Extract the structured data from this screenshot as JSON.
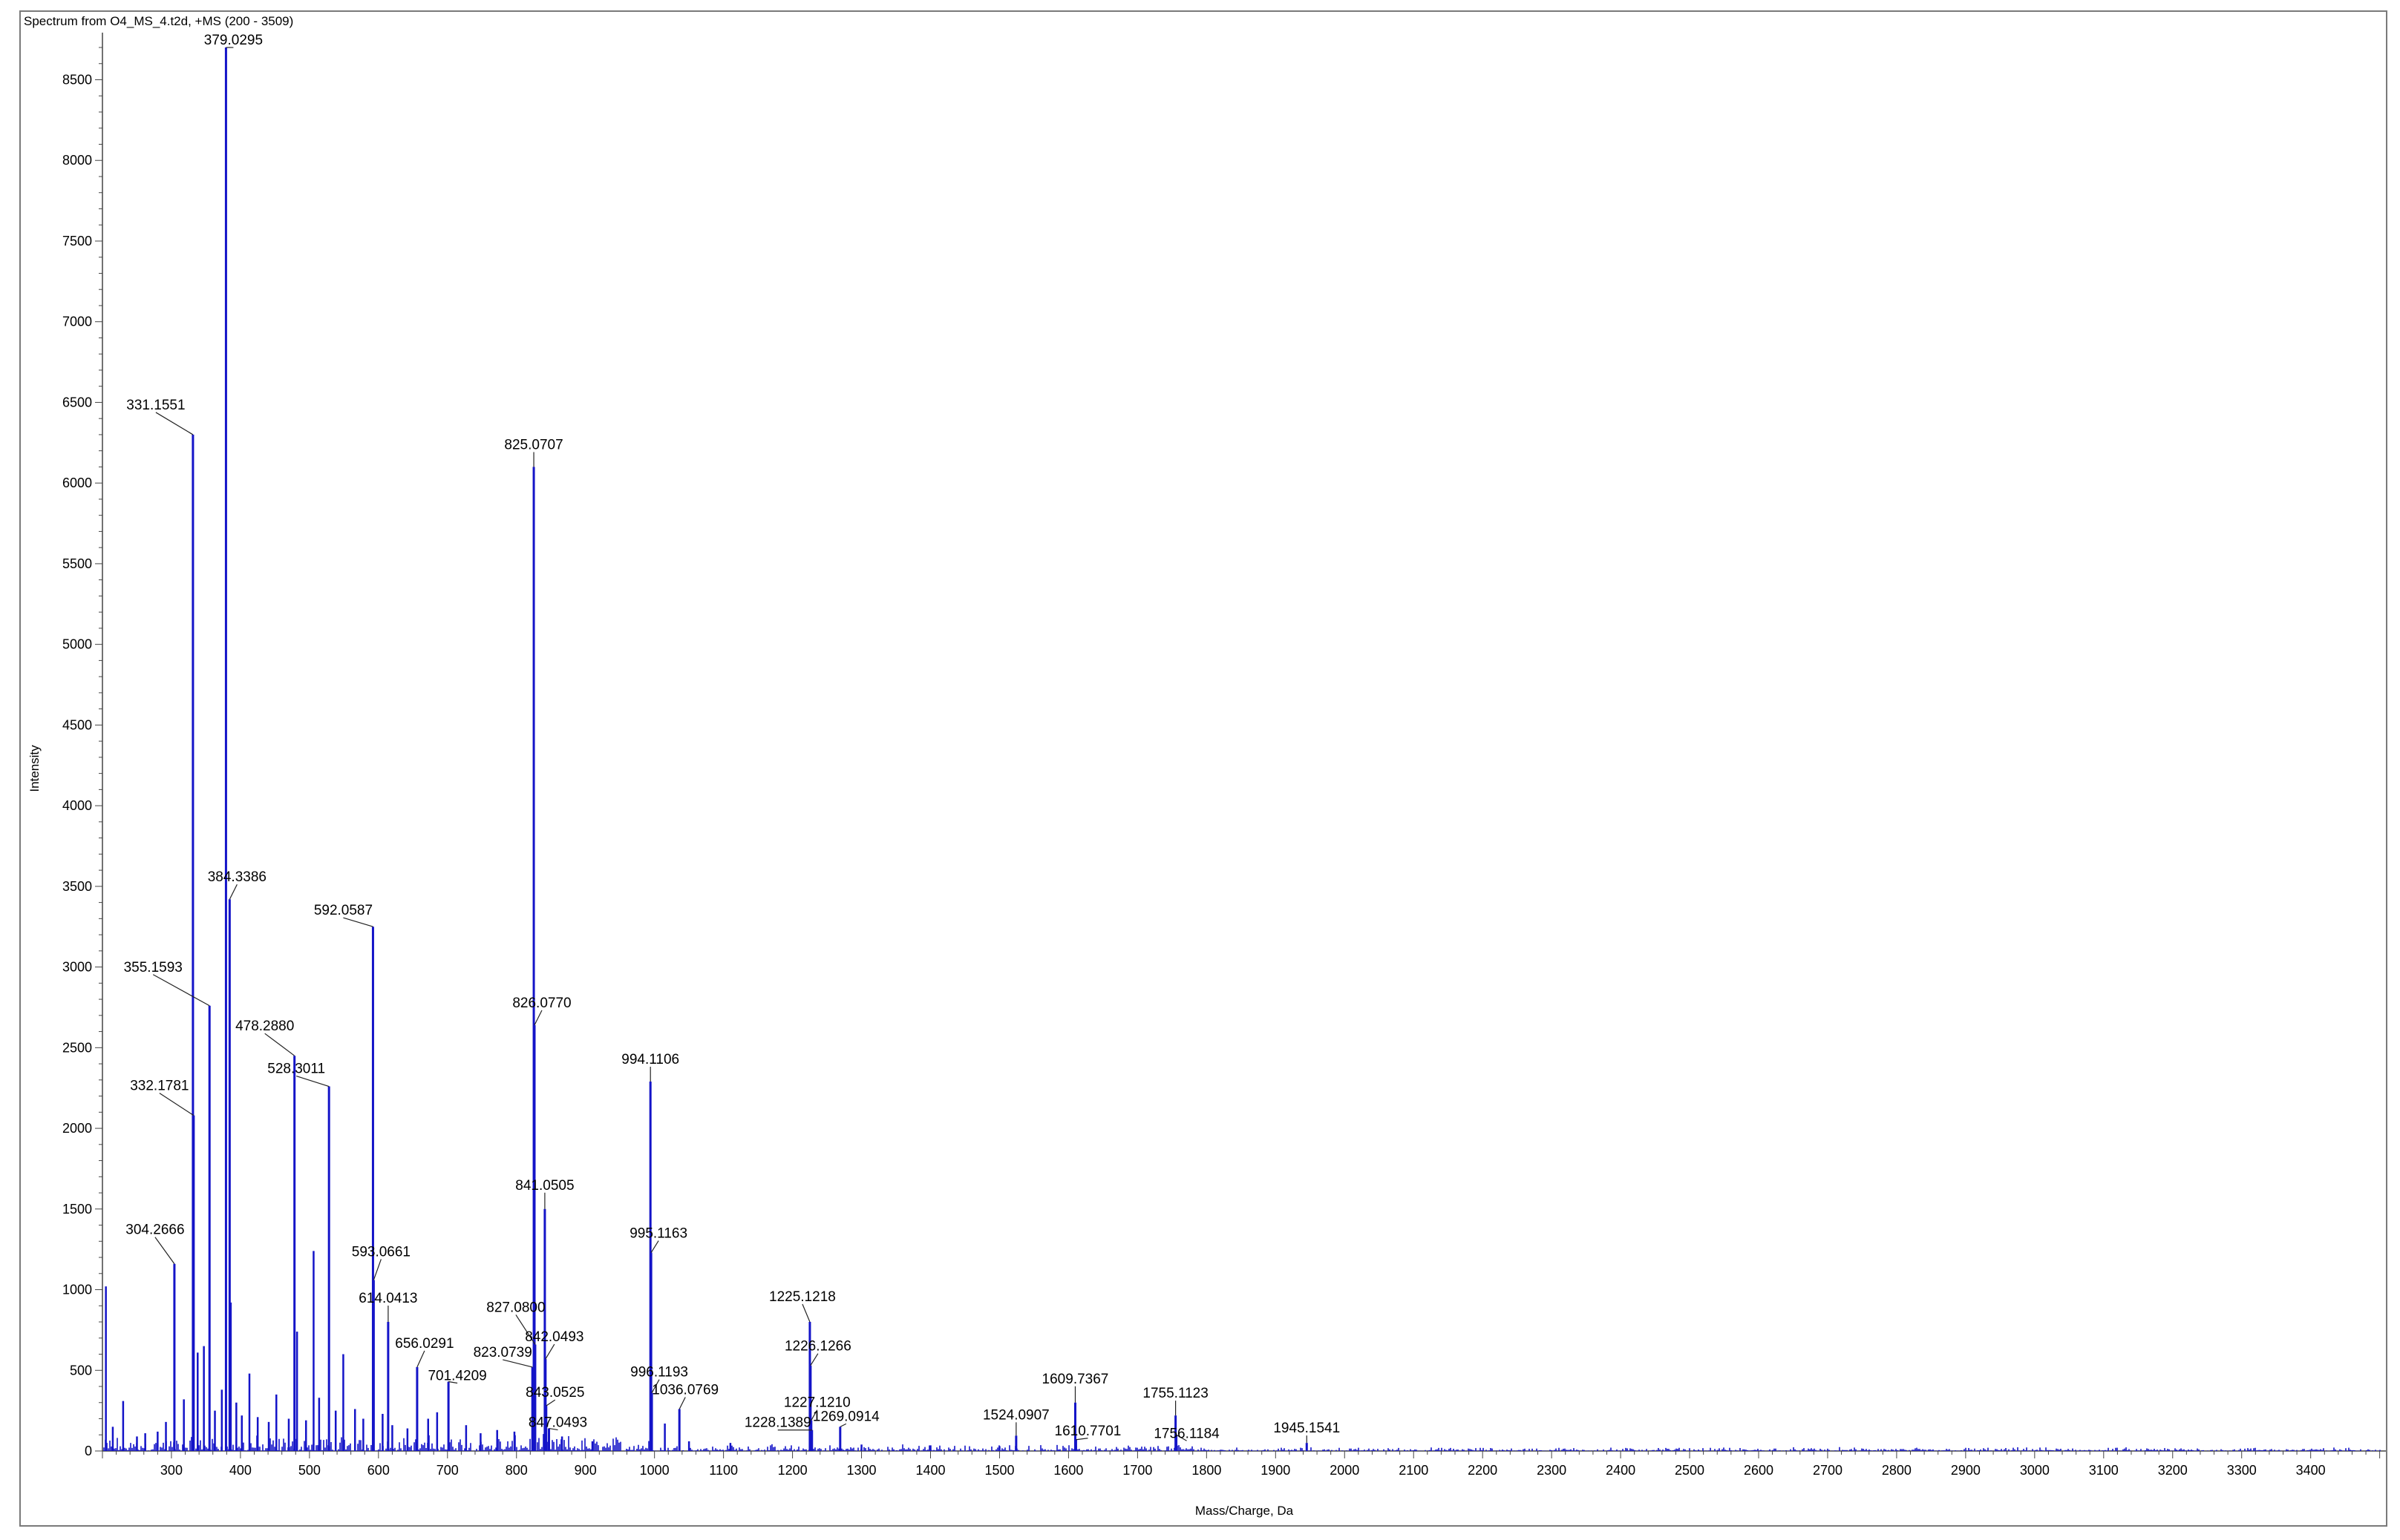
{
  "chart_data": {
    "type": "bar",
    "title": "Spectrum from O4_MS_4.t2d, +MS (200 - 3509)",
    "xlabel": "Mass/Charge, Da",
    "ylabel": "Intensity",
    "xlim": [
      200,
      3509
    ],
    "ylim": [
      0,
      8700
    ],
    "x_ticks": [
      300,
      400,
      500,
      600,
      700,
      800,
      900,
      1000,
      1100,
      1200,
      1300,
      1400,
      1500,
      1600,
      1700,
      1800,
      1900,
      2000,
      2100,
      2200,
      2300,
      2400,
      2500,
      2600,
      2700,
      2800,
      2900,
      3000,
      3100,
      3200,
      3300,
      3400
    ],
    "y_ticks": [
      0,
      500,
      1000,
      1500,
      2000,
      2500,
      3000,
      3500,
      4000,
      4500,
      5000,
      5500,
      6000,
      6500,
      7000,
      7500,
      8000,
      8500
    ],
    "color": "#1414c8",
    "labeled_peaks": [
      {
        "mz": 304.2666,
        "intensity": 1160,
        "label": "304.2666"
      },
      {
        "mz": 331.1551,
        "intensity": 6300,
        "label": "331.1551"
      },
      {
        "mz": 332.1781,
        "intensity": 2080,
        "label": "332.1781"
      },
      {
        "mz": 355.1593,
        "intensity": 2760,
        "label": "355.1593"
      },
      {
        "mz": 379.0295,
        "intensity": 8700,
        "label": "379.0295"
      },
      {
        "mz": 384.3386,
        "intensity": 3420,
        "label": "384.3386"
      },
      {
        "mz": 478.288,
        "intensity": 2450,
        "label": "478.2880"
      },
      {
        "mz": 528.3011,
        "intensity": 2260,
        "label": "528.3011"
      },
      {
        "mz": 592.0587,
        "intensity": 3250,
        "label": "592.0587"
      },
      {
        "mz": 593.0661,
        "intensity": 1060,
        "label": "593.0661"
      },
      {
        "mz": 614.0413,
        "intensity": 800,
        "label": "614.0413"
      },
      {
        "mz": 656.0291,
        "intensity": 520,
        "label": "656.0291"
      },
      {
        "mz": 701.4209,
        "intensity": 430,
        "label": "701.4209"
      },
      {
        "mz": 823.0739,
        "intensity": 520,
        "label": "823.0739"
      },
      {
        "mz": 825.0707,
        "intensity": 6100,
        "label": "825.0707"
      },
      {
        "mz": 826.077,
        "intensity": 2640,
        "label": "826.0770"
      },
      {
        "mz": 827.08,
        "intensity": 660,
        "label": "827.0800"
      },
      {
        "mz": 841.0505,
        "intensity": 1500,
        "label": "841.0505"
      },
      {
        "mz": 842.0493,
        "intensity": 570,
        "label": "842.0493"
      },
      {
        "mz": 843.0525,
        "intensity": 280,
        "label": "843.0525"
      },
      {
        "mz": 847.0493,
        "intensity": 140,
        "label": "847.0493"
      },
      {
        "mz": 994.1106,
        "intensity": 2290,
        "label": "994.1106"
      },
      {
        "mz": 995.1163,
        "intensity": 1230,
        "label": "995.1163"
      },
      {
        "mz": 996.1193,
        "intensity": 360,
        "label": "996.1193"
      },
      {
        "mz": 1036.0769,
        "intensity": 260,
        "label": "1036.0769"
      },
      {
        "mz": 1225.1218,
        "intensity": 800,
        "label": "1225.1218"
      },
      {
        "mz": 1226.1266,
        "intensity": 530,
        "label": "1226.1266"
      },
      {
        "mz": 1227.121,
        "intensity": 190,
        "label": "1227.1210"
      },
      {
        "mz": 1228.1389,
        "intensity": 130,
        "label": "1228.1389"
      },
      {
        "mz": 1269.0914,
        "intensity": 150,
        "label": "1269.0914"
      },
      {
        "mz": 1524.0907,
        "intensity": 95,
        "label": "1524.0907"
      },
      {
        "mz": 1609.7367,
        "intensity": 300,
        "label": "1609.7367"
      },
      {
        "mz": 1610.7701,
        "intensity": 70,
        "label": "1610.7701"
      },
      {
        "mz": 1755.1123,
        "intensity": 220,
        "label": "1755.1123"
      },
      {
        "mz": 1756.1184,
        "intensity": 100,
        "label": "1756.1184"
      },
      {
        "mz": 1945.1541,
        "intensity": 50,
        "label": "1945.1541"
      }
    ],
    "unlabeled_peaks": [
      {
        "mz": 205,
        "intensity": 1020
      },
      {
        "mz": 215,
        "intensity": 150
      },
      {
        "mz": 230,
        "intensity": 310
      },
      {
        "mz": 250,
        "intensity": 90
      },
      {
        "mz": 262,
        "intensity": 110
      },
      {
        "mz": 280,
        "intensity": 120
      },
      {
        "mz": 292,
        "intensity": 180
      },
      {
        "mz": 318,
        "intensity": 320
      },
      {
        "mz": 338,
        "intensity": 610
      },
      {
        "mz": 347,
        "intensity": 650
      },
      {
        "mz": 363,
        "intensity": 250
      },
      {
        "mz": 373,
        "intensity": 380
      },
      {
        "mz": 386,
        "intensity": 920
      },
      {
        "mz": 394,
        "intensity": 300
      },
      {
        "mz": 402,
        "intensity": 220
      },
      {
        "mz": 413,
        "intensity": 480
      },
      {
        "mz": 425,
        "intensity": 210
      },
      {
        "mz": 441,
        "intensity": 180
      },
      {
        "mz": 452,
        "intensity": 350
      },
      {
        "mz": 470,
        "intensity": 200
      },
      {
        "mz": 482,
        "intensity": 740
      },
      {
        "mz": 495,
        "intensity": 190
      },
      {
        "mz": 506,
        "intensity": 1240
      },
      {
        "mz": 514,
        "intensity": 330
      },
      {
        "mz": 538,
        "intensity": 250
      },
      {
        "mz": 549,
        "intensity": 600
      },
      {
        "mz": 566,
        "intensity": 260
      },
      {
        "mz": 578,
        "intensity": 200
      },
      {
        "mz": 606,
        "intensity": 230
      },
      {
        "mz": 620,
        "intensity": 160
      },
      {
        "mz": 642,
        "intensity": 140
      },
      {
        "mz": 672,
        "intensity": 200
      },
      {
        "mz": 685,
        "intensity": 240
      },
      {
        "mz": 727,
        "intensity": 160
      },
      {
        "mz": 748,
        "intensity": 110
      },
      {
        "mz": 772,
        "intensity": 130
      },
      {
        "mz": 797,
        "intensity": 120
      },
      {
        "mz": 866,
        "intensity": 90
      },
      {
        "mz": 910,
        "intensity": 60
      },
      {
        "mz": 1015,
        "intensity": 170
      },
      {
        "mz": 1050,
        "intensity": 60
      },
      {
        "mz": 1110,
        "intensity": 50
      },
      {
        "mz": 1300,
        "intensity": 40
      },
      {
        "mz": 1400,
        "intensity": 35
      },
      {
        "mz": 1500,
        "intensity": 30
      }
    ]
  }
}
